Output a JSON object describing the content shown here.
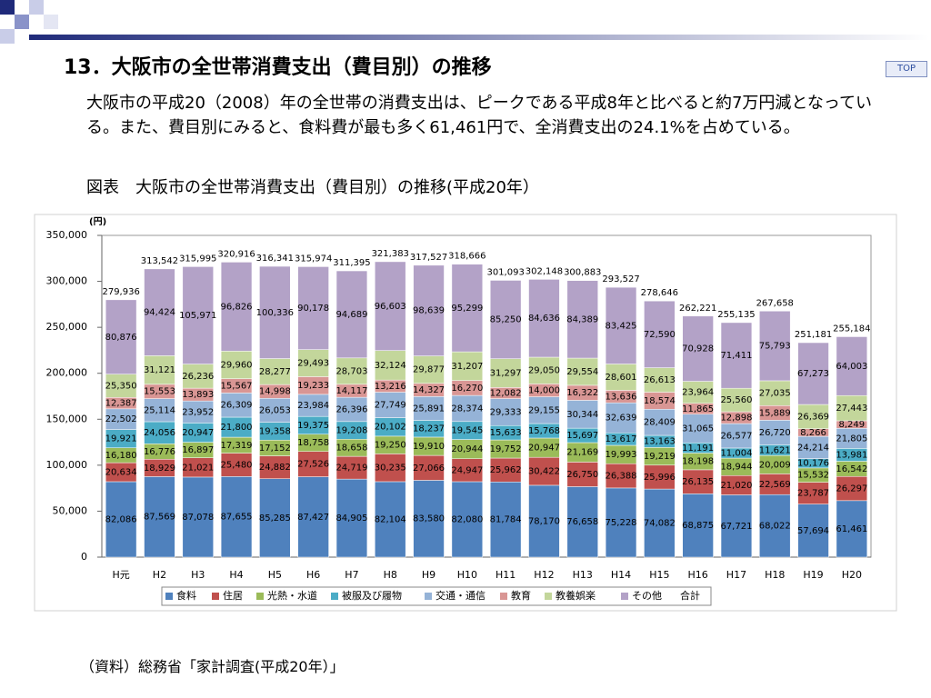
{
  "header": {
    "title": "13．大阪市の全世帯消費支出（費目別）の推移",
    "top_button": "TOP"
  },
  "body": {
    "text": "大阪市の平成20（2008）年の全世帯の消費支出は、ピークである平成8年と比べると約7万円減となっている。また、費目別にみると、食料費が最も多く61,461円で、全消費支出の24.1%を占めている。",
    "caption": "図表　大阪市の全世帯消費支出（費目別）の推移(平成20年）",
    "source": "（資料）総務省「家計調査(平成20年）」"
  },
  "chart_data": {
    "type": "stacked_bar",
    "y_unit": "(円)",
    "categories": [
      "H元",
      "H2",
      "H3",
      "H4",
      "H5",
      "H6",
      "H7",
      "H8",
      "H9",
      "H10",
      "H11",
      "H12",
      "H13",
      "H14",
      "H15",
      "H16",
      "H17",
      "H18",
      "H19",
      "H20"
    ],
    "ylim": [
      0,
      350000
    ],
    "yticks": [
      0,
      {
        "value": 50000,
        "label": "50,000"
      },
      {
        "value": 100000,
        "label": "100,000"
      },
      {
        "value": 150000,
        "label": "150,000"
      },
      {
        "value": 200000,
        "label": "200,000"
      },
      {
        "value": 250000,
        "label": "250,000"
      },
      {
        "value": 300000,
        "label": "300,000"
      },
      {
        "value": 350000,
        "label": "350,000"
      }
    ],
    "grid": false,
    "series": [
      {
        "name": "食料",
        "color": "#4f81bd",
        "values": [
          82086,
          87569,
          87078,
          87655,
          85285,
          87427,
          84905,
          82104,
          83580,
          82080,
          81784,
          78170,
          76658,
          75228,
          74082,
          68875,
          67721,
          68022,
          57694,
          61461
        ],
        "value_labels": [
          "82,086",
          "87,569",
          "87,078",
          "87,655",
          "85,285",
          "87,427",
          "84,905",
          "82,104",
          "83,580",
          "82,080",
          "81,784",
          "78,170",
          "76,658",
          "75,228",
          "74,082",
          "68,875",
          "67,721",
          "68,022",
          "57,694",
          "61,461"
        ]
      },
      {
        "name": "住居",
        "color": "#c0504d",
        "values": [
          20634,
          18929,
          21021,
          25480,
          24882,
          27526,
          24719,
          30235,
          27066,
          24947,
          25962,
          30422,
          26750,
          26388,
          25996,
          26135,
          21020,
          22569,
          23787,
          26297
        ],
        "value_labels": [
          "20,634",
          "18,929",
          "21,021",
          "25,480",
          "24,882",
          "27,526",
          "24,719",
          "30,235",
          "27,066",
          "24,947",
          "25,962",
          "30,422",
          "26,750",
          "26,388",
          "25,996",
          "26,135",
          "21,020",
          "22,569",
          "23,787",
          "26,297"
        ]
      },
      {
        "name": "光熱・水道",
        "color": "#9bbb59",
        "values": [
          16180,
          16776,
          16897,
          17319,
          17152,
          18758,
          18658,
          19250,
          19910,
          20944,
          19752,
          20947,
          21169,
          19993,
          19219,
          18198,
          18944,
          20009,
          15532,
          16542
        ],
        "value_labels": [
          "16,180",
          "16,776",
          "16,897",
          "17,319",
          "17,152",
          "18,758",
          "18,658",
          "19,250",
          "19,910",
          "20,944",
          "19,752",
          "20,947",
          "21,169",
          "19,993",
          "19,219",
          "18,198",
          "18,944",
          "20,009",
          "15,532",
          "16,542"
        ]
      },
      {
        "name": "被服及び履物",
        "color": "#4bacc6",
        "values": [
          19921,
          24056,
          20947,
          21800,
          19358,
          19375,
          19208,
          20102,
          18237,
          19545,
          15633,
          15768,
          15697,
          13617,
          13163,
          11191,
          11004,
          11621,
          10176,
          13981
        ],
        "value_labels": [
          "19,921",
          "24,056",
          "20,947",
          "21,800",
          "19,358",
          "19,375",
          "19,208",
          "20,102",
          "18,237",
          "19,545",
          "15,633",
          "15,768",
          "15,697",
          "13,617",
          "13,163",
          "11,191",
          "11,004",
          "11,621",
          "10,176",
          "13,981"
        ]
      },
      {
        "name": "交通・通信",
        "color": "#95b3d7",
        "values": [
          22502,
          25114,
          23952,
          26309,
          26053,
          23984,
          26396,
          27749,
          25891,
          28374,
          29333,
          29155,
          30344,
          32639,
          28409,
          31065,
          26577,
          26720,
          24214,
          21805
        ],
        "value_labels": [
          "22,502",
          "25,114",
          "23,952",
          "26,309",
          "26,053",
          "23,984",
          "26,396",
          "27,749",
          "25,891",
          "28,374",
          "29,333",
          "29,155",
          "30,344",
          "32,639",
          "28,409",
          "31,065",
          "26,577",
          "26,720",
          "24,214",
          "21,805"
        ]
      },
      {
        "name": "教育",
        "color": "#d99694",
        "values": [
          12387,
          15553,
          13893,
          15567,
          14998,
          19233,
          14117,
          13216,
          14327,
          16270,
          12082,
          14000,
          16322,
          13636,
          18574,
          11865,
          12898,
          15889,
          8266,
          8249
        ],
        "value_labels": [
          "12,387",
          "15,553",
          "13,893",
          "15,567",
          "14,998",
          "19,233",
          "14,117",
          "13,216",
          "14,327",
          "16,270",
          "12,082",
          "14,000",
          "16,322",
          "13,636",
          "18,574",
          "11,865",
          "12,898",
          "15,889",
          "8,266",
          "8,249"
        ]
      },
      {
        "name": "教養娯楽",
        "color": "#c3d69b",
        "values": [
          25350,
          31121,
          26236,
          29960,
          28277,
          29493,
          28703,
          32124,
          29877,
          31207,
          31297,
          29050,
          29554,
          28601,
          26613,
          23964,
          25560,
          27035,
          26369,
          27443
        ],
        "value_labels": [
          "25,350",
          "31,121",
          "26,236",
          "29,960",
          "28,277",
          "29,493",
          "28,703",
          "32,124",
          "29,877",
          "31,207",
          "31,297",
          "29,050",
          "29,554",
          "28,601",
          "26,613",
          "23,964",
          "25,560",
          "27,035",
          "26,369",
          "27,443"
        ]
      },
      {
        "name": "その他",
        "color": "#b3a2c7",
        "values": [
          80876,
          94424,
          105971,
          96826,
          100336,
          90178,
          94689,
          96603,
          98639,
          95299,
          85250,
          84636,
          84389,
          83425,
          72590,
          70928,
          71411,
          75793,
          67273,
          64003
        ],
        "value_labels": [
          "80,876",
          "94,424",
          "105,971",
          "96,826",
          "100,336",
          "90,178",
          "94,689",
          "96,603",
          "98,639",
          "95,299",
          "85,250",
          "84,636",
          "84,389",
          "83,425",
          "72,590",
          "70,928",
          "71,411",
          "75,793",
          "67,273",
          "64,003"
        ]
      }
    ],
    "totals": {
      "name": "合計",
      "values": [
        279936,
        313542,
        315995,
        320916,
        316341,
        315974,
        311395,
        321383,
        317527,
        318666,
        301093,
        302148,
        300883,
        293527,
        278646,
        262221,
        255135,
        267658,
        251181,
        255184
      ],
      "value_labels": [
        "279,936",
        "313,542",
        "315,995",
        "320,916",
        "316,341",
        "315,974",
        "311,395",
        "321,383",
        "317,527",
        "318,666",
        "301,093",
        "302,148",
        "300,883",
        "293,527",
        "278,646",
        "262,221",
        "255,135",
        "267,658",
        "251,181",
        "255,184"
      ]
    }
  }
}
